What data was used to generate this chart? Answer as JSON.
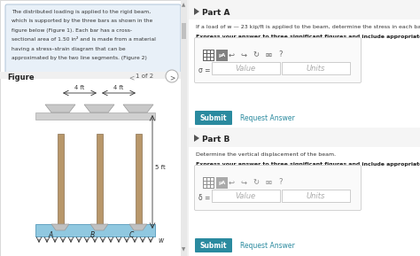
{
  "bg_color": "#f0f0f0",
  "left_panel_bg": "#ffffff",
  "right_panel_bg": "#ffffff",
  "text_box_bg": "#e8f0f8",
  "text_box_border": "#b0c4d8",
  "left_panel_text_line1": "The distributed loading is applied to the rigid beam,",
  "left_panel_text_line2": "which is supported by the three bars as shown in the",
  "left_panel_text_line3": "figure below (Figure 1). Each bar has a cross-",
  "left_panel_text_line4": "sectional area of 1.50 in² and is made from a material",
  "left_panel_text_line5": "having a stress–strain diagram that can be",
  "left_panel_text_line6": "approximated by the two line segments. (Figure 2)",
  "figure_label": "Figure",
  "figure_nav": "1 of 2",
  "dim_label1": "4 ft",
  "dim_label2": "4 ft",
  "height_label": "5 ft",
  "bar_labels": [
    "A",
    "B",
    "C"
  ],
  "load_label": "w",
  "part_a_label": "Part A",
  "part_a_desc": "If a load of w — 23 kip/ft is applied to the beam, determine the stress in each bar.",
  "part_a_bold": "Express your answer to three significant figures and include appropriate units.",
  "sigma_label": "σ =",
  "value_placeholder": "Value",
  "units_placeholder": "Units",
  "submit_text": "Submit",
  "request_answer_text": "Request Answer",
  "part_b_label": "Part B",
  "part_b_desc": "Determine the vertical displacement of the beam.",
  "part_b_bold": "Express your answer to three significant figures and include appropriate units.",
  "delta_label": "δ =",
  "submit_color": "#2a8a9f",
  "request_answer_color": "#2a8a9f",
  "input_bg": "#ffffff",
  "input_border": "#bbbbbb",
  "bar_color": "#b8976a",
  "cap_color": "#c8c8c8",
  "base_color": "#90c8e0",
  "divider_color": "#e0e0e0",
  "part_header_bg": "#f5f5f5",
  "scroll_color": "#c0c0c0",
  "toolbar_icon_dark": "#666666",
  "toolbar_icon_mid": "#888888"
}
